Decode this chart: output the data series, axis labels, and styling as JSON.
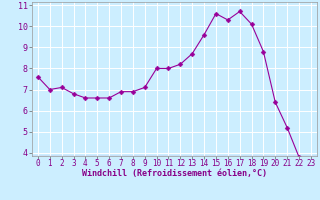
{
  "xlabel": "Windchill (Refroidissement éolien,°C)",
  "x": [
    0,
    1,
    2,
    3,
    4,
    5,
    6,
    7,
    8,
    9,
    10,
    11,
    12,
    13,
    14,
    15,
    16,
    17,
    18,
    19,
    20,
    21,
    22,
    23
  ],
  "y": [
    7.6,
    7.0,
    7.1,
    6.8,
    6.6,
    6.6,
    6.6,
    6.9,
    6.9,
    7.1,
    8.0,
    8.0,
    8.2,
    8.7,
    9.6,
    10.6,
    10.3,
    10.7,
    10.1,
    8.8,
    6.4,
    5.2,
    3.8,
    3.7
  ],
  "line_color": "#990099",
  "marker_color": "#990099",
  "bg_color": "#cceeff",
  "grid_color": "#ffffff",
  "tick_label_color": "#880088",
  "xlabel_color": "#880088",
  "ylabel_min": 4,
  "ylabel_max": 11,
  "yticks": [
    4,
    5,
    6,
    7,
    8,
    9,
    10,
    11
  ],
  "xticks": [
    0,
    1,
    2,
    3,
    4,
    5,
    6,
    7,
    8,
    9,
    10,
    11,
    12,
    13,
    14,
    15,
    16,
    17,
    18,
    19,
    20,
    21,
    22,
    23
  ],
  "font_size": 5.5,
  "xlabel_font_size": 6.0,
  "marker_size": 2.5,
  "line_width": 0.8
}
